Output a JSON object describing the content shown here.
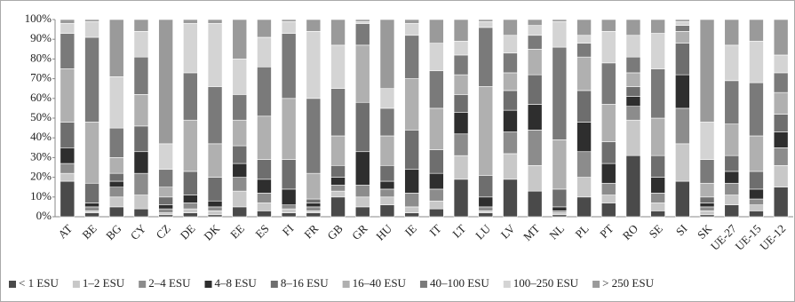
{
  "chart_data": {
    "type": "stacked_bar",
    "categories": [
      "AT",
      "BE",
      "BG",
      "CY",
      "CZ",
      "DE",
      "DK",
      "EE",
      "ES",
      "FI",
      "FR",
      "GB",
      "GR",
      "HU",
      "IE",
      "IT",
      "LT",
      "LU",
      "LV",
      "MT",
      "NL",
      "PL",
      "PT",
      "RO",
      "SE",
      "SI",
      "SK",
      "UE-27",
      "UE-15",
      "UE-12"
    ],
    "series": [
      {
        "name": "< 1 ESU",
        "color": "#4a4a4a",
        "values": [
          18,
          2,
          5,
          4,
          1,
          2,
          1,
          5,
          3,
          2,
          2,
          10,
          5,
          6,
          2,
          4,
          19,
          2,
          19,
          13,
          1,
          10,
          7,
          31,
          3,
          18,
          1,
          6,
          3,
          15
        ]
      },
      {
        "name": "1–2 ESU",
        "color": "#c8c8c8",
        "values": [
          4,
          1,
          5,
          7,
          1,
          2,
          2,
          8,
          4,
          2,
          1,
          3,
          5,
          4,
          3,
          4,
          12,
          1,
          13,
          13,
          1,
          10,
          4,
          18,
          4,
          19,
          2,
          5,
          3,
          11
        ]
      },
      {
        "name": "2–4 ESU",
        "color": "#8c8c8c",
        "values": [
          5,
          2,
          5,
          11,
          2,
          3,
          2,
          7,
          5,
          2,
          2,
          3,
          6,
          4,
          7,
          6,
          11,
          2,
          11,
          18,
          1,
          13,
          6,
          7,
          5,
          18,
          2,
          6,
          3,
          9
        ]
      },
      {
        "name": "4–8 ESU",
        "color": "#2e2e2e",
        "values": [
          8,
          2,
          3,
          11,
          2,
          4,
          3,
          7,
          7,
          8,
          2,
          4,
          17,
          4,
          12,
          8,
          11,
          5,
          11,
          13,
          2,
          15,
          10,
          5,
          8,
          17,
          2,
          6,
          5,
          8
        ]
      },
      {
        "name": "8–16 ESU",
        "color": "#6e6e6e",
        "values": [
          13,
          10,
          4,
          13,
          4,
          12,
          12,
          9,
          10,
          15,
          2,
          6,
          25,
          8,
          20,
          12,
          9,
          11,
          10,
          15,
          9,
          16,
          11,
          5,
          11,
          16,
          3,
          8,
          9,
          9
        ]
      },
      {
        "name": "16–40 ESU",
        "color": "#b0b0b0",
        "values": [
          27,
          31,
          8,
          16,
          5,
          26,
          17,
          13,
          22,
          31,
          13,
          15,
          29,
          15,
          26,
          21,
          10,
          45,
          9,
          13,
          25,
          17,
          19,
          7,
          19,
          6,
          7,
          16,
          18,
          11
        ]
      },
      {
        "name": "40–100 ESU",
        "color": "#7a7a7a",
        "values": [
          18,
          43,
          15,
          19,
          9,
          24,
          29,
          13,
          25,
          33,
          38,
          24,
          11,
          14,
          22,
          19,
          10,
          30,
          10,
          7,
          47,
          7,
          21,
          8,
          25,
          3,
          12,
          22,
          27,
          10
        ]
      },
      {
        "name": "100–250 ESU",
        "color": "#d4d4d4",
        "values": [
          5,
          8,
          26,
          13,
          13,
          25,
          32,
          18,
          15,
          6,
          34,
          22,
          1,
          10,
          6,
          14,
          7,
          3,
          9,
          5,
          13,
          4,
          16,
          11,
          18,
          2,
          19,
          18,
          21,
          9
        ]
      },
      {
        "name": "> 250 ESU",
        "color": "#9a9a9a",
        "values": [
          2,
          1,
          29,
          6,
          63,
          2,
          2,
          20,
          9,
          1,
          6,
          13,
          1,
          35,
          2,
          12,
          11,
          1,
          8,
          3,
          1,
          8,
          6,
          8,
          7,
          1,
          52,
          13,
          11,
          18
        ]
      }
    ],
    "ylim": [
      0,
      100
    ],
    "yticks": [
      {
        "value": 0,
        "label": "0%"
      },
      {
        "value": 10,
        "label": "10%"
      },
      {
        "value": 20,
        "label": "20%"
      },
      {
        "value": 30,
        "label": "30%"
      },
      {
        "value": 40,
        "label": "40%"
      },
      {
        "value": 50,
        "label": "50%"
      },
      {
        "value": 60,
        "label": "60%"
      },
      {
        "value": 70,
        "label": "70%"
      },
      {
        "value": 80,
        "label": "80%"
      },
      {
        "value": 90,
        "label": "90%"
      },
      {
        "value": 100,
        "label": "100%"
      }
    ]
  }
}
